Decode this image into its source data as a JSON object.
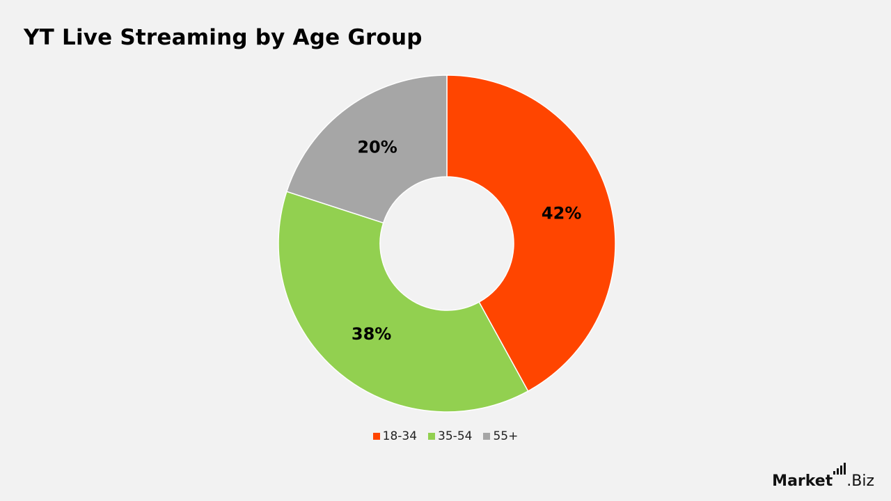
{
  "chart_data": {
    "type": "pie",
    "title": "YT Live Streaming by Age Group",
    "categories": [
      "18-34",
      "35-54",
      "55+"
    ],
    "values": [
      42,
      38,
      20
    ],
    "data_labels": [
      "42%",
      "38%",
      "20%"
    ],
    "colors": [
      "#ff4500",
      "#92d050",
      "#a6a6a6"
    ],
    "donut": true,
    "legend_position": "bottom"
  },
  "branding": {
    "logo_text_main": "Market",
    "logo_text_suffix": ".Biz"
  }
}
